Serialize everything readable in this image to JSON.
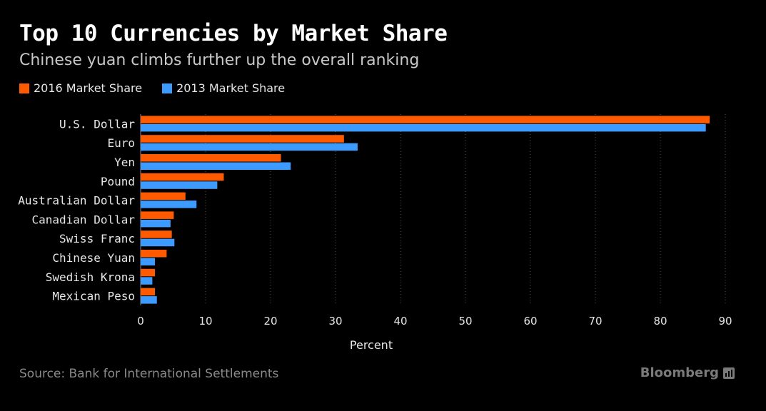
{
  "chart_data": {
    "type": "bar",
    "orientation": "horizontal",
    "title": "Top 10 Currencies by Market Share",
    "subtitle": "Chinese yuan climbs further up the overall ranking",
    "categories": [
      "U.S. Dollar",
      "Euro",
      "Yen",
      "Pound",
      "Australian Dollar",
      "Canadian Dollar",
      "Swiss Franc",
      "Chinese Yuan",
      "Swedish Krona",
      "Mexican Peso"
    ],
    "series": [
      {
        "name": "2016 Market Share",
        "color": "#ff5a00",
        "values": [
          87.6,
          31.3,
          21.6,
          12.8,
          6.9,
          5.1,
          4.8,
          4.0,
          2.2,
          2.2
        ]
      },
      {
        "name": "2013 Market Share",
        "color": "#3d9bff",
        "values": [
          87.0,
          33.4,
          23.1,
          11.8,
          8.6,
          4.6,
          5.2,
          2.2,
          1.8,
          2.5
        ]
      }
    ],
    "xlabel": "Percent",
    "ylabel": "",
    "xlim": [
      0,
      90
    ],
    "xticks": [
      0,
      10,
      20,
      30,
      40,
      50,
      60,
      70,
      80,
      90
    ],
    "grid": "vertical dotted",
    "legend": "top-left",
    "source": "Source: Bank for International Settlements",
    "brand": "Bloomberg",
    "brand_icon": "bloomberg-chart-icon",
    "background_color": "#000000"
  }
}
